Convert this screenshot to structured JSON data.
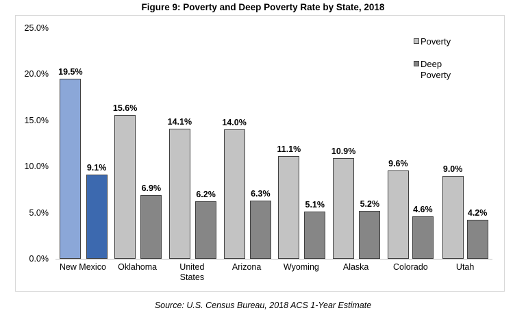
{
  "figure": {
    "title": "Figure 9: Poverty and Deep Poverty Rate by State, 2018",
    "source": "Source: U.S. Census Bureau, 2018 ACS 1-Year Estimate"
  },
  "chart_data": {
    "type": "bar",
    "title": "Figure 9: Poverty and Deep Poverty Rate by State, 2018",
    "categories": [
      "New Mexico",
      "Oklahoma",
      "United States",
      "Arizona",
      "Wyoming",
      "Alaska",
      "Colorado",
      "Utah"
    ],
    "series": [
      {
        "name": "Poverty",
        "values": [
          19.5,
          15.6,
          14.1,
          14.0,
          11.1,
          10.9,
          9.6,
          9.0
        ],
        "labels": [
          "19.5%",
          "15.6%",
          "14.1%",
          "14.0%",
          "11.1%",
          "10.9%",
          "9.6%",
          "9.0%"
        ],
        "color": "#c3c3c3",
        "highlight_color": "#8ba7d8"
      },
      {
        "name": "Deep Poverty",
        "values": [
          9.1,
          6.9,
          6.2,
          6.3,
          5.1,
          5.2,
          4.6,
          4.2
        ],
        "labels": [
          "9.1%",
          "6.9%",
          "6.2%",
          "6.3%",
          "5.1%",
          "5.2%",
          "4.6%",
          "4.2%"
        ],
        "color": "#868686",
        "highlight_color": "#3c69af"
      }
    ],
    "highlight_category": "New Mexico",
    "ylim": [
      0,
      25
    ],
    "yticks": [
      "0.0%",
      "5.0%",
      "10.0%",
      "15.0%",
      "20.0%",
      "25.0%"
    ],
    "xlabel": "",
    "ylabel": "",
    "grid": false,
    "legend_position": "right-top",
    "legend": [
      "Poverty",
      "Deep Poverty"
    ],
    "colors": {
      "bar_border": "#3f3f3f",
      "axis_line": "#bfbfbf",
      "frame_border": "#d8d8d8",
      "text": "#000000"
    }
  }
}
